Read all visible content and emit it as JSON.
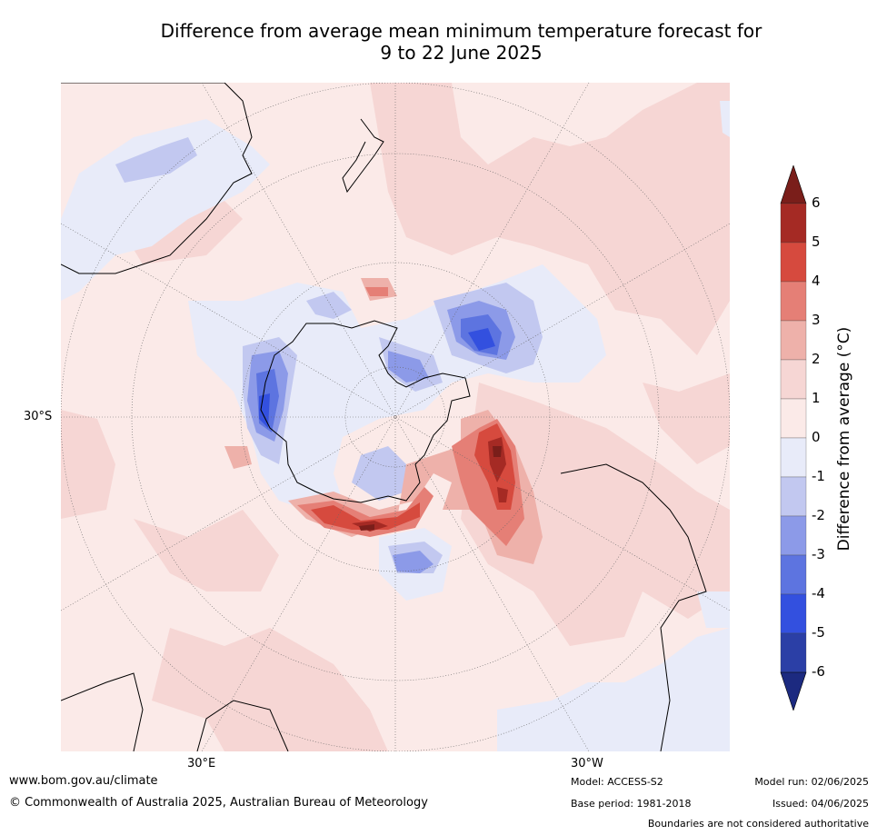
{
  "title": {
    "line1": "Difference from average mean minimum temperature forecast for",
    "line2": "9 to 22 June 2025"
  },
  "map": {
    "labels": {
      "lat_left": "30°S",
      "lon_bottom_left": "30°E",
      "lon_bottom_right": "30°W"
    }
  },
  "colorbar": {
    "label": "Difference from average (°C)",
    "ticks": [
      "6",
      "5",
      "4",
      "3",
      "2",
      "1",
      "0",
      "-1",
      "-2",
      "-3",
      "-4",
      "-5",
      "-6"
    ],
    "colors": {
      "over": "#7a1e1a",
      "bands_top_to_bottom": [
        "#a52a24",
        "#d64a3e",
        "#e57f76",
        "#eeb1aa",
        "#f6d6d4",
        "#fbeae8",
        "#e8ebf9",
        "#c2c8f0",
        "#8c9ae8",
        "#5d74e0",
        "#3350df",
        "#2b3fa6"
      ],
      "under": "#1c2a80"
    }
  },
  "footer": {
    "url": "www.bom.gov.au/climate",
    "copyright": "© Commonwealth of Australia 2025, Australian Bureau of Meteorology",
    "model": "Model: ACCESS-S2",
    "base_period": "Base period: 1981-2018",
    "model_run": "Model run: 02/06/2025",
    "issued": "Issued: 04/06/2025",
    "disclaimer": "Boundaries are not considered authoritative"
  }
}
